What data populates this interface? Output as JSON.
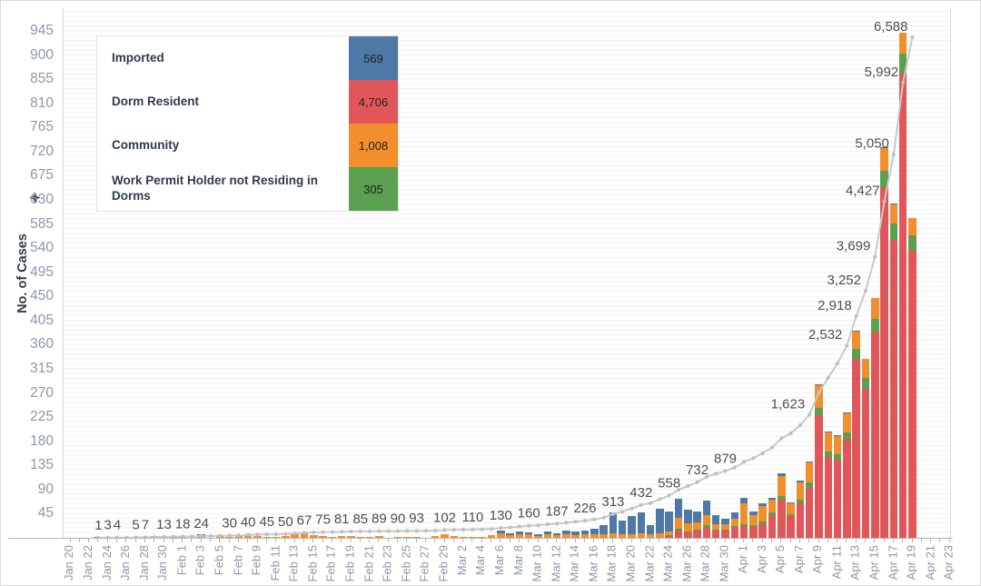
{
  "y_axis": {
    "title": "No. of Cases",
    "tick_labels": [
      "45",
      "90",
      "135",
      "180",
      "225",
      "270",
      "315",
      "360",
      "405",
      "450",
      "495",
      "540",
      "585",
      "630",
      "675",
      "720",
      "765",
      "810",
      "855",
      "900",
      "945"
    ],
    "max": 945
  },
  "x_axis": {
    "tick_labels": [
      "Jan 20",
      "Jan 22",
      "Jan 24",
      "Jan 26",
      "Jan 28",
      "Jan 30",
      "Feb 1",
      "Feb 3",
      "Feb 5",
      "Feb 7",
      "Feb 9",
      "Feb 11",
      "Feb 13",
      "Feb 15",
      "Feb 17",
      "Feb 19",
      "Feb 21",
      "Feb 23",
      "Feb 25",
      "Feb 27",
      "Feb 29",
      "Mar 2",
      "Mar 4",
      "Mar 6",
      "Mar 8",
      "Mar 10",
      "Mar 12",
      "Mar 14",
      "Mar 16",
      "Mar 18",
      "Mar 20",
      "Mar 22",
      "Mar 24",
      "Mar 26",
      "Mar 28",
      "Mar 30",
      "Apr 1",
      "Apr 3",
      "Apr 5",
      "Apr 7",
      "Apr 9",
      "Apr 11",
      "Apr 13",
      "Apr 15",
      "Apr 17",
      "Apr 19",
      "Apr 21",
      "Apr 23"
    ]
  },
  "legend": {
    "items": [
      {
        "label": "Imported",
        "value": "569",
        "color": "#4e79a7"
      },
      {
        "label": "Dorm Resident",
        "value": "4,706",
        "color": "#e15759"
      },
      {
        "label": "Community",
        "value": "1,008",
        "color": "#f28e2b"
      },
      {
        "label": "Work Permit Holder not Residing in Dorms",
        "value": "305",
        "color": "#59a14f"
      }
    ]
  },
  "chart_data": {
    "type": "bar",
    "subtype": "stacked-daily-bars-with-cumulative-line",
    "ylabel": "No. of Cases",
    "ylim": [
      0,
      945
    ],
    "grid": "horizontal-fine",
    "legend_position": "top-left-inside",
    "dates": [
      "Jan 23",
      "Jan 24",
      "Jan 25",
      "Jan 26",
      "Jan 27",
      "Jan 28",
      "Jan 29",
      "Jan 30",
      "Jan 31",
      "Feb 1",
      "Feb 2",
      "Feb 3",
      "Feb 4",
      "Feb 5",
      "Feb 6",
      "Feb 7",
      "Feb 8",
      "Feb 9",
      "Feb 10",
      "Feb 11",
      "Feb 12",
      "Feb 13",
      "Feb 14",
      "Feb 15",
      "Feb 16",
      "Feb 17",
      "Feb 18",
      "Feb 19",
      "Feb 20",
      "Feb 21",
      "Feb 22",
      "Feb 23",
      "Feb 24",
      "Feb 25",
      "Feb 26",
      "Feb 27",
      "Feb 28",
      "Feb 29",
      "Mar 1",
      "Mar 2",
      "Mar 3",
      "Mar 4",
      "Mar 5",
      "Mar 6",
      "Mar 7",
      "Mar 8",
      "Mar 9",
      "Mar 10",
      "Mar 11",
      "Mar 12",
      "Mar 13",
      "Mar 14",
      "Mar 15",
      "Mar 16",
      "Mar 17",
      "Mar 18",
      "Mar 19",
      "Mar 20",
      "Mar 21",
      "Mar 22",
      "Mar 23",
      "Mar 24",
      "Mar 25",
      "Mar 26",
      "Mar 27",
      "Mar 28",
      "Mar 29",
      "Mar 30",
      "Mar 31",
      "Apr 1",
      "Apr 2",
      "Apr 3",
      "Apr 4",
      "Apr 5",
      "Apr 6",
      "Apr 7",
      "Apr 8",
      "Apr 9",
      "Apr 10",
      "Apr 11",
      "Apr 12",
      "Apr 13",
      "Apr 14",
      "Apr 15",
      "Apr 16",
      "Apr 17",
      "Apr 18",
      "Apr 19"
    ],
    "series": [
      {
        "name": "Dorm Resident",
        "color": "#e15759",
        "values": [
          0,
          0,
          0,
          0,
          0,
          0,
          0,
          0,
          0,
          0,
          0,
          0,
          0,
          0,
          0,
          0,
          0,
          0,
          0,
          0,
          0,
          0,
          0,
          0,
          0,
          0,
          0,
          0,
          0,
          0,
          0,
          0,
          0,
          0,
          0,
          0,
          0,
          0,
          0,
          0,
          0,
          0,
          0,
          0,
          0,
          0,
          0,
          0,
          0,
          0,
          0,
          0,
          0,
          0,
          0,
          0,
          0,
          0,
          0,
          0,
          0,
          3,
          14,
          10,
          13,
          19,
          13,
          13,
          19,
          22,
          20,
          26,
          42,
          72,
          40,
          64,
          94,
          228,
          150,
          146,
          184,
          334,
          278,
          385,
          654,
          556,
          866,
          536
        ]
      },
      {
        "name": "Work Permit Holder not Residing in Dorms",
        "color": "#59a14f",
        "values": [
          0,
          0,
          0,
          0,
          0,
          0,
          0,
          0,
          0,
          0,
          0,
          0,
          0,
          0,
          0,
          0,
          0,
          0,
          0,
          0,
          0,
          0,
          0,
          0,
          0,
          0,
          0,
          0,
          0,
          0,
          0,
          0,
          0,
          0,
          0,
          0,
          0,
          0,
          0,
          0,
          0,
          0,
          0,
          0,
          0,
          0,
          0,
          0,
          0,
          0,
          0,
          0,
          0,
          0,
          0,
          0,
          0,
          0,
          0,
          0,
          0,
          1,
          3,
          2,
          3,
          4,
          2,
          2,
          3,
          4,
          3,
          4,
          5,
          6,
          4,
          7,
          10,
          14,
          11,
          10,
          12,
          18,
          20,
          24,
          30,
          30,
          36,
          28
        ]
      },
      {
        "name": "Community",
        "color": "#f28e2b",
        "values": [
          0,
          0,
          0,
          0,
          0,
          0,
          0,
          0,
          0,
          1,
          0,
          5,
          0,
          4,
          2,
          3,
          7,
          3,
          2,
          2,
          3,
          8,
          9,
          5,
          3,
          2,
          4,
          3,
          1,
          1,
          3,
          0,
          1,
          1,
          2,
          0,
          3,
          6,
          4,
          2,
          2,
          2,
          5,
          9,
          5,
          7,
          6,
          4,
          6,
          5,
          6,
          5,
          6,
          7,
          6,
          9,
          7,
          7,
          8,
          7,
          9,
          7,
          21,
          15,
          13,
          19,
          11,
          10,
          13,
          38,
          20,
          30,
          24,
          38,
          20,
          33,
          36,
          43,
          36,
          34,
          36,
          33,
          36,
          38,
          43,
          36,
          40,
          32
        ]
      },
      {
        "name": "Imported",
        "color": "#4e79a7",
        "values": [
          1,
          2,
          1,
          0,
          1,
          2,
          3,
          3,
          3,
          1,
          0,
          1,
          0,
          0,
          0,
          0,
          0,
          0,
          0,
          0,
          0,
          0,
          0,
          0,
          0,
          0,
          0,
          0,
          0,
          0,
          0,
          0,
          0,
          0,
          0,
          0,
          0,
          0,
          0,
          0,
          0,
          0,
          0,
          4,
          3,
          5,
          4,
          2,
          6,
          4,
          7,
          7,
          8,
          10,
          17,
          38,
          25,
          33,
          39,
          16,
          45,
          38,
          35,
          25,
          20,
          28,
          16,
          10,
          12,
          10,
          6,
          5,
          4,
          4,
          2,
          2,
          2,
          2,
          1,
          1,
          1,
          1,
          0,
          0,
          1,
          1,
          0,
          0
        ]
      }
    ],
    "cumulative_line": {
      "name": "Cumulative Total",
      "color": "#c9c9c9",
      "values": [
        1,
        3,
        4,
        4,
        5,
        7,
        10,
        13,
        16,
        18,
        18,
        24,
        24,
        28,
        30,
        33,
        40,
        43,
        45,
        47,
        50,
        58,
        67,
        72,
        75,
        77,
        81,
        84,
        85,
        86,
        89,
        89,
        90,
        91,
        93,
        93,
        96,
        102,
        106,
        108,
        110,
        112,
        117,
        130,
        138,
        150,
        160,
        166,
        178,
        187,
        200,
        212,
        226,
        243,
        266,
        313,
        345,
        385,
        432,
        455,
        509,
        558,
        631,
        683,
        732,
        802,
        844,
        879,
        926,
        1000,
        1049,
        1114,
        1189,
        1309,
        1375,
        1481,
        1623,
        1910,
        2108,
        2299,
        2532,
        2918,
        3252,
        3699,
        4427,
        5050,
        5992,
        6588
      ],
      "labeled_points": [
        {
          "date": "Jan 23",
          "label": "1"
        },
        {
          "date": "Jan 24",
          "label": "3"
        },
        {
          "date": "Jan 25",
          "label": "4"
        },
        {
          "date": "Jan 27",
          "label": "5"
        },
        {
          "date": "Jan 28",
          "label": "7"
        },
        {
          "date": "Jan 30",
          "label": "13"
        },
        {
          "date": "Feb 1",
          "label": "18"
        },
        {
          "date": "Feb 3",
          "label": "24"
        },
        {
          "date": "Feb 6",
          "label": "30"
        },
        {
          "date": "Feb 8",
          "label": "40"
        },
        {
          "date": "Feb 10",
          "label": "45"
        },
        {
          "date": "Feb 12",
          "label": "50"
        },
        {
          "date": "Feb 14",
          "label": "67"
        },
        {
          "date": "Feb 16",
          "label": "75"
        },
        {
          "date": "Feb 18",
          "label": "81"
        },
        {
          "date": "Feb 20",
          "label": "85"
        },
        {
          "date": "Feb 22",
          "label": "89"
        },
        {
          "date": "Feb 24",
          "label": "90"
        },
        {
          "date": "Feb 26",
          "label": "93"
        },
        {
          "date": "Feb 29",
          "label": "102"
        },
        {
          "date": "Mar 3",
          "label": "110"
        },
        {
          "date": "Mar 6",
          "label": "130"
        },
        {
          "date": "Mar 9",
          "label": "160"
        },
        {
          "date": "Mar 12",
          "label": "187"
        },
        {
          "date": "Mar 15",
          "label": "226"
        },
        {
          "date": "Mar 18",
          "label": "313"
        },
        {
          "date": "Mar 21",
          "label": "432"
        },
        {
          "date": "Mar 24",
          "label": "558"
        },
        {
          "date": "Mar 27",
          "label": "732"
        },
        {
          "date": "Mar 30",
          "label": "879"
        },
        {
          "date": "Apr 8",
          "label": "1,623"
        },
        {
          "date": "Apr 12",
          "label": "2,532"
        },
        {
          "date": "Apr 13",
          "label": "2,918"
        },
        {
          "date": "Apr 14",
          "label": "3,252"
        },
        {
          "date": "Apr 15",
          "label": "3,699"
        },
        {
          "date": "Apr 16",
          "label": "4,427"
        },
        {
          "date": "Apr 17",
          "label": "5,050"
        },
        {
          "date": "Apr 18",
          "label": "5,992"
        },
        {
          "date": "Apr 19",
          "label": "6,588"
        }
      ]
    }
  }
}
